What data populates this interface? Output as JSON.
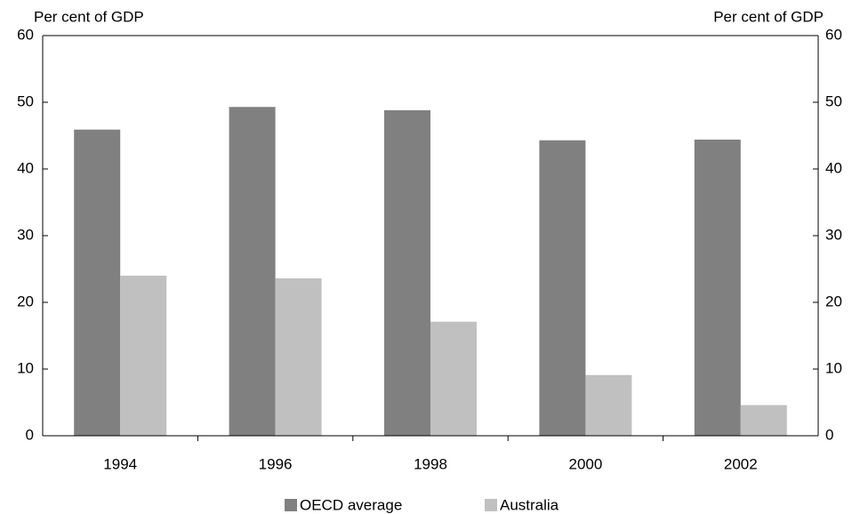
{
  "chart_data": {
    "type": "bar",
    "y_label": "Per cent of GDP",
    "y2_label": "Per cent of GDP",
    "categories": [
      "1994",
      "1996",
      "1998",
      "2000",
      "2002"
    ],
    "series": [
      {
        "name": "OECD average",
        "color": "#808080",
        "values": [
          45.9,
          49.3,
          48.8,
          44.3,
          44.4
        ]
      },
      {
        "name": "Australia",
        "color": "#c0c0c0",
        "values": [
          24.0,
          23.6,
          17.1,
          9.1,
          4.6
        ]
      }
    ],
    "ylim": [
      0,
      60
    ],
    "yticks": [
      0,
      10,
      20,
      30,
      40,
      50,
      60
    ],
    "y2lim": [
      0,
      60
    ],
    "y2ticks": [
      0,
      10,
      20,
      30,
      40,
      50,
      60
    ],
    "legend": "bottom"
  }
}
